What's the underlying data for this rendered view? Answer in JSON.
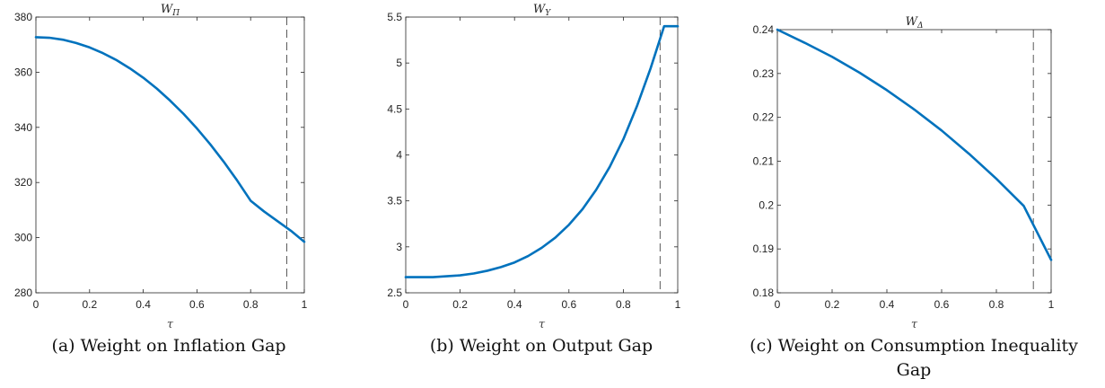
{
  "chart_data": [
    {
      "type": "line",
      "title": "W",
      "title_sub": "Π",
      "xlabel": "τ",
      "ylabel": "",
      "caption_lines": [
        "(a) Weight on Inflation Gap"
      ],
      "xlim": [
        0,
        1
      ],
      "ylim": [
        280,
        380
      ],
      "xticks": [
        0,
        0.2,
        0.4,
        0.6,
        0.8,
        1
      ],
      "xtick_labels": [
        "0",
        "0.2",
        "0.4",
        "0.6",
        "0.8",
        "1"
      ],
      "yticks": [
        280,
        300,
        320,
        340,
        360,
        380
      ],
      "ytick_labels": [
        "280",
        "300",
        "320",
        "340",
        "360",
        "380"
      ],
      "vline": 0.935,
      "line_color": "#0072BD",
      "series": [
        {
          "x": [
            0,
            0.05,
            0.1,
            0.15,
            0.2,
            0.25,
            0.3,
            0.35,
            0.4,
            0.45,
            0.5,
            0.55,
            0.6,
            0.65,
            0.7,
            0.75,
            0.8,
            0.85,
            0.9,
            0.95,
            1
          ],
          "y": [
            372.7,
            372.5,
            371.8,
            370.6,
            369.0,
            366.9,
            364.4,
            361.4,
            358.0,
            354.1,
            349.7,
            344.9,
            339.6,
            333.8,
            327.5,
            320.7,
            313.4,
            305.6,
            312.0,
            305.0,
            298.5
          ]
        }
      ]
    },
    {
      "type": "line",
      "title": "W",
      "title_sub": "Y",
      "xlabel": "τ",
      "ylabel": "",
      "caption_lines": [
        "(b) Weight on Output Gap"
      ],
      "xlim": [
        0,
        1
      ],
      "ylim": [
        2.5,
        5.5
      ],
      "xticks": [
        0,
        0.2,
        0.4,
        0.6,
        0.8,
        1
      ],
      "xtick_labels": [
        "0",
        "0.2",
        "0.4",
        "0.6",
        "0.8",
        "1"
      ],
      "yticks": [
        2.5,
        3,
        3.5,
        4,
        4.5,
        5,
        5.5
      ],
      "ytick_labels": [
        "2.5",
        "3",
        "3.5",
        "4",
        "4.5",
        "5",
        "5.5"
      ],
      "vline": 0.935,
      "line_color": "#0072BD",
      "series": [
        {
          "x": [
            0,
            0.05,
            0.1,
            0.15,
            0.2,
            0.25,
            0.3,
            0.35,
            0.4,
            0.45,
            0.5,
            0.55,
            0.6,
            0.65,
            0.7,
            0.75,
            0.8,
            0.85,
            0.9,
            0.95,
            1
          ],
          "y": [
            2.67,
            2.67,
            2.67,
            2.68,
            2.69,
            2.71,
            2.74,
            2.78,
            2.83,
            2.9,
            2.99,
            3.1,
            3.24,
            3.41,
            3.62,
            3.87,
            4.17,
            4.53,
            4.94,
            5.4,
            5.4
          ]
        }
      ]
    },
    {
      "type": "line",
      "title": "W",
      "title_sub": "Δ",
      "xlabel": "τ",
      "ylabel": "",
      "caption_lines": [
        "(c) Weight on Consumption Inequality",
        "Gap"
      ],
      "xlim": [
        0,
        1
      ],
      "ylim": [
        0.18,
        0.24
      ],
      "xticks": [
        0,
        0.2,
        0.4,
        0.6,
        0.8,
        1
      ],
      "xtick_labels": [
        "0",
        "0.2",
        "0.4",
        "0.6",
        "0.8",
        "1"
      ],
      "yticks": [
        0.18,
        0.19,
        0.2,
        0.21,
        0.22,
        0.23,
        0.24
      ],
      "ytick_labels": [
        "0.18",
        "0.19",
        "0.2",
        "0.21",
        "0.22",
        "0.23",
        "0.24"
      ],
      "vline": 0.935,
      "line_color": "#0072BD",
      "series": [
        {
          "x": [
            0,
            0.1,
            0.2,
            0.3,
            0.4,
            0.5,
            0.6,
            0.7,
            0.8,
            0.9,
            1
          ],
          "y": [
            0.24,
            0.237,
            0.2338,
            0.2302,
            0.2262,
            0.2218,
            0.217,
            0.2117,
            0.206,
            0.1998,
            0.1875
          ]
        }
      ]
    }
  ]
}
